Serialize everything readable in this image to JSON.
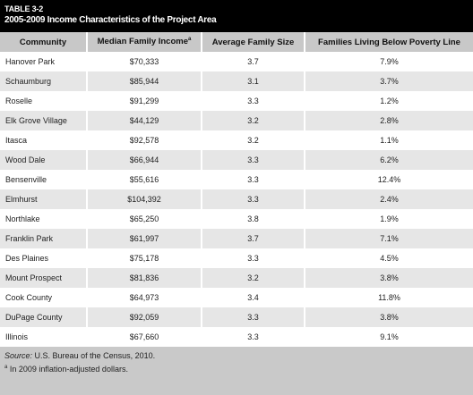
{
  "header": {
    "label": "TABLE 3-2",
    "title": "2005-2009 Income Characteristics of the Project Area"
  },
  "table": {
    "columns": [
      "Community",
      "Median Family Income",
      "Average Family Size",
      "Families Living Below Poverty Line"
    ],
    "column_note_marker": "a",
    "rows": [
      [
        "Hanover Park",
        "$70,333",
        "3.7",
        "7.9%"
      ],
      [
        "Schaumburg",
        "$85,944",
        "3.1",
        "3.7%"
      ],
      [
        "Roselle",
        "$91,299",
        "3.3",
        "1.2%"
      ],
      [
        "Elk Grove Village",
        "$44,129",
        "3.2",
        "2.8%"
      ],
      [
        "Itasca",
        "$92,578",
        "3.2",
        "1.1%"
      ],
      [
        "Wood Dale",
        "$66,944",
        "3.3",
        "6.2%"
      ],
      [
        "Bensenville",
        "$55,616",
        "3.3",
        "12.4%"
      ],
      [
        "Elmhurst",
        "$104,392",
        "3.3",
        "2.4%"
      ],
      [
        "Northlake",
        "$65,250",
        "3.8",
        "1.9%"
      ],
      [
        "Franklin Park",
        "$61,997",
        "3.7",
        "7.1%"
      ],
      [
        "Des Plaines",
        "$75,178",
        "3.3",
        "4.5%"
      ],
      [
        "Mount Prospect",
        "$81,836",
        "3.2",
        "3.8%"
      ],
      [
        "Cook County",
        "$64,973",
        "3.4",
        "11.8%"
      ],
      [
        "DuPage County",
        "$92,059",
        "3.3",
        "3.8%"
      ],
      [
        "Illinois",
        "$67,660",
        "3.3",
        "9.1%"
      ]
    ]
  },
  "footer": {
    "source_label": "Source:",
    "source": "U.S. Bureau of the Census, 2010.",
    "note_marker": "a",
    "note": "In 2009 inflation-adjusted dollars."
  }
}
